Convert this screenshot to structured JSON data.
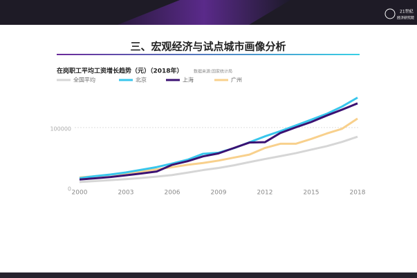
{
  "header": {
    "logo_top": "21世纪",
    "logo_bottom": "经济研究院",
    "title": "三、宏观经济与试点城市画像分析"
  },
  "chart_data": {
    "type": "line",
    "title": "在岗职工平均工资增长趋势（元）（2018年）",
    "source": "数据来源:国家统计局",
    "x": [
      2000,
      2001,
      2002,
      2003,
      2004,
      2005,
      2006,
      2007,
      2008,
      2009,
      2010,
      2011,
      2012,
      2013,
      2014,
      2015,
      2016,
      2017,
      2018
    ],
    "xlim": [
      2000,
      2018
    ],
    "xticks": [
      2000,
      2003,
      2006,
      2009,
      2012,
      2015,
      2018
    ],
    "ylim": [
      0,
      155000
    ],
    "yticks": [
      0,
      100000
    ],
    "grid": true,
    "series": [
      {
        "name": "全国平均",
        "color": "#d6d6d6",
        "values": [
          9371,
          10870,
          12422,
          14040,
          16024,
          18364,
          21001,
          24932,
          29229,
          32736,
          37147,
          42452,
          47593,
          52388,
          57361,
          63241,
          68993,
          76121,
          84744
        ]
      },
      {
        "name": "北京",
        "color": "#38c6ec",
        "values": [
          15726,
          19155,
          21852,
          25312,
          29674,
          34191,
          40117,
          46507,
          56328,
          58140,
          65682,
          75482,
          85306,
          93997,
          103400,
          113073,
          122749,
          134994,
          149843
        ]
      },
      {
        "name": "上海",
        "color": "#3b1172",
        "values": [
          13500,
          15500,
          17700,
          20500,
          23500,
          26800,
          38000,
          44000,
          52000,
          57000,
          66000,
          75000,
          75600,
          90900,
          100300,
          109200,
          119900,
          129800,
          140300
        ]
      },
      {
        "name": "广州",
        "color": "#f8d08c",
        "values": [
          17000,
          19000,
          21500,
          24000,
          27000,
          30500,
          34000,
          38000,
          41000,
          45000,
          50000,
          55000,
          66000,
          73000,
          73000,
          81000,
          90000,
          98000,
          115000
        ]
      }
    ]
  }
}
